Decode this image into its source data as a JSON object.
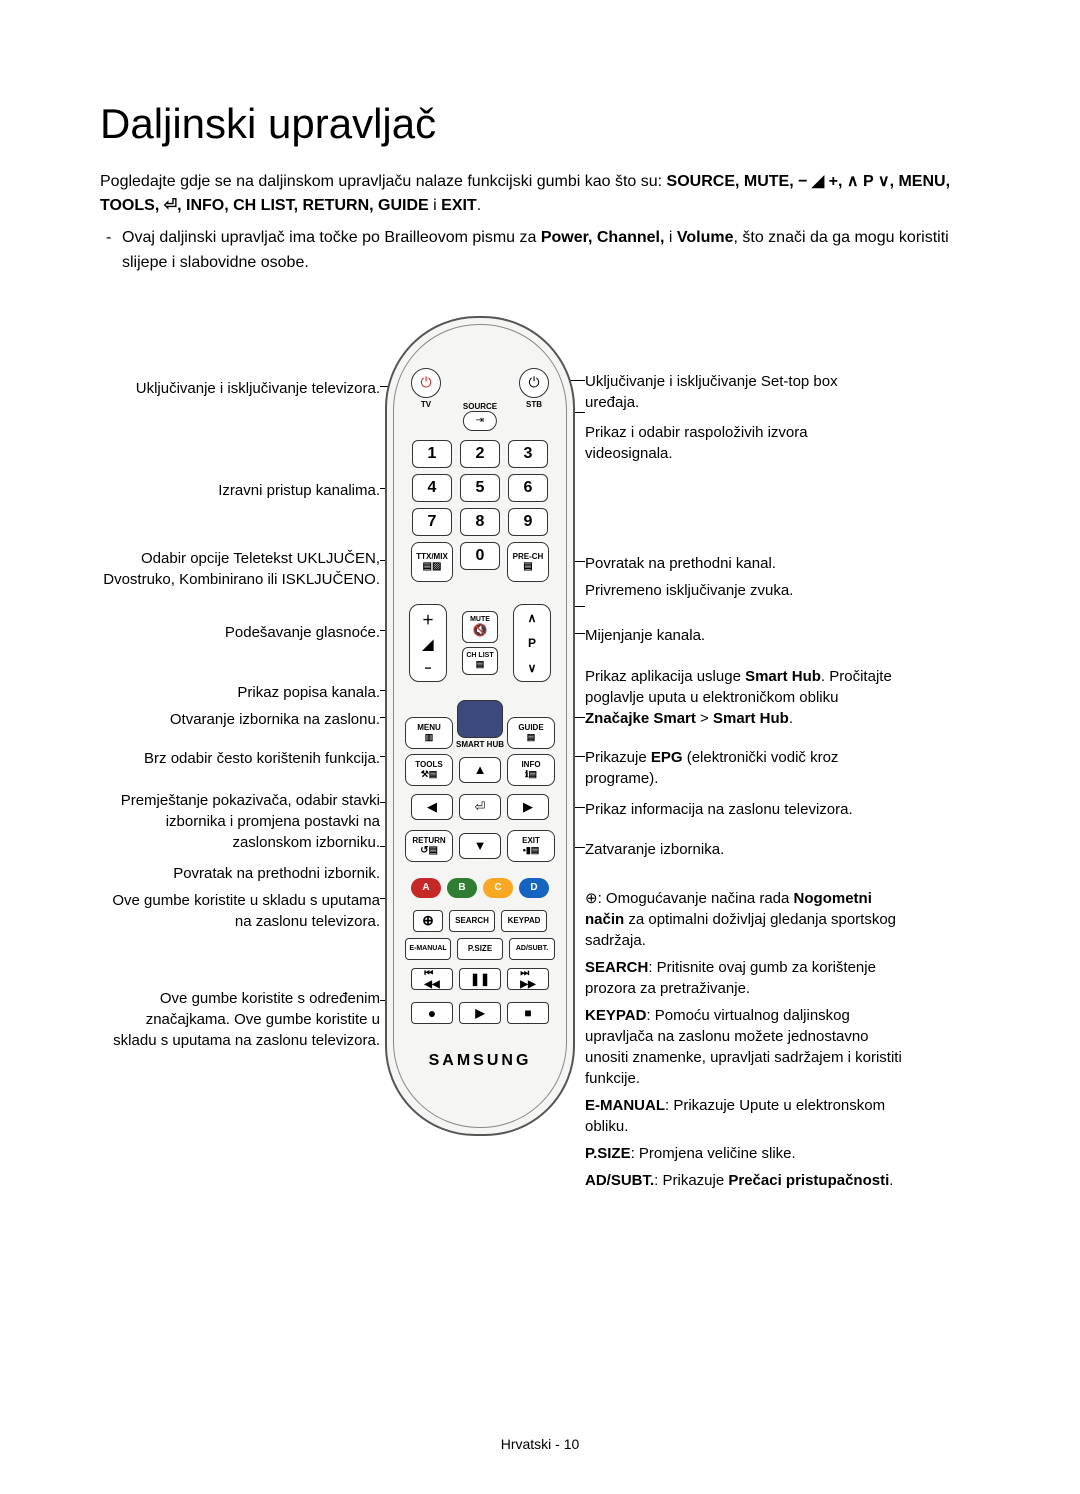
{
  "title": "Daljinski upravljač",
  "intro_pre": "Pogledajte gdje se na daljinskom upravljaču nalaze funkcijski gumbi kao što su: ",
  "intro_keys": "SOURCE, MUTE, − ◢ +, ∧ P ∨, MENU, TOOLS, ⏎, INFO, CH LIST, RETURN, GUIDE",
  "intro_post": " i ",
  "intro_last": "EXIT",
  "bullet_pre": "Ovaj daljinski upravljač ima točke po Brailleovom pismu za ",
  "bullet_keys": "Power, Channel,",
  "bullet_mid": " i ",
  "bullet_keys2": "Volume",
  "bullet_post": ", što znači da ga mogu koristiti slijepe i slabovidne osobe.",
  "footer": "Hrvatski - 10",
  "remote": {
    "tv": "TV",
    "source": "SOURCE",
    "stb": "STB",
    "ttx": "TTX/MIX",
    "prech": "PRE-CH",
    "mute": "MUTE",
    "chlist": "CH LIST",
    "p": "P",
    "menu": "MENU",
    "guide": "GUIDE",
    "smarthub": "SMART HUB",
    "tools": "TOOLS",
    "info": "INFO",
    "return": "RETURN",
    "exit": "EXIT",
    "search": "SEARCH",
    "keypad": "KEYPAD",
    "emanual": "E-MANUAL",
    "psize": "P.SIZE",
    "adsubt": "AD/SUBT.",
    "logo": "SAMSUNG",
    "abcd": [
      "A",
      "B",
      "C",
      "D"
    ],
    "abcd_colors": [
      "#c62828",
      "#2e7d32",
      "#f9a825",
      "#1565c0"
    ]
  },
  "left": {
    "power": "Uključivanje i isključivanje televizora.",
    "direct": "Izravni pristup kanalima.",
    "ttx": "Odabir opcije Teletekst UKLJUČEN, Dvostruko, Kombinirano ili ISKLJUČENO.",
    "vol": "Podešavanje glasnoće.",
    "chlist": "Prikaz popisa kanala.",
    "menu": "Otvaranje izbornika na zaslonu.",
    "tools": "Brz odabir često korištenih funkcija.",
    "cursor": "Premještanje pokazivača, odabir stavki izbornika i promjena postavki na zaslonskom izborniku.",
    "return": "Povratak na prethodni izbornik.",
    "abcd": "Ove gumbe koristite u skladu s uputama na zaslonu televizora.",
    "play": "Ove gumbe koristite s određenim značajkama. Ove gumbe koristite u skladu s uputama na zaslonu televizora."
  },
  "right": {
    "stb": "Uključivanje i isključivanje Set-top box uređaja.",
    "source": "Prikaz i odabir raspoloživih izvora videosignala.",
    "prech": "Povratak na prethodni kanal.",
    "mute": "Privremeno isključivanje zvuka.",
    "ch": "Mijenjanje kanala.",
    "hub_pre": "Prikaz aplikacija usluge ",
    "hub_b1": "Smart Hub",
    "hub_mid": ". Pročitajte poglavlje uputa u elektroničkom obliku ",
    "hub_b2": "Značajke Smart",
    "hub_gt": " > ",
    "hub_b3": "Smart Hub",
    "epg_pre": "Prikazuje ",
    "epg_b": "EPG",
    "epg_post": " (elektronički vodič kroz programe).",
    "info": "Prikaz informacija na zaslonu televizora.",
    "exit": "Zatvaranje izbornika.",
    "sport_pre": "⊕: Omogućavanje načina rada ",
    "sport_b": "Nogometni način",
    "sport_post": " za optimalni doživljaj gledanja sportskog sadržaja.",
    "search_b": "SEARCH",
    "search": ": Pritisnite ovaj gumb za korištenje prozora za pretraživanje.",
    "keypad_b": "KEYPAD",
    "keypad": ": Pomoću virtualnog daljinskog upravljača na zaslonu možete jednostavno unositi znamenke, upravljati sadržajem i koristiti funkcije.",
    "emanual_b": "E-MANUAL",
    "emanual": ": Prikazuje Upute u elektronskom obliku.",
    "psize_b": "P.SIZE",
    "psize": ": Promjena veličine slike.",
    "adsubt_b": "AD/SUBT.",
    "adsubt_pre": ": Prikazuje ",
    "adsubt_bb": "Prečaci pristupačnosti",
    "adsubt_post": "."
  }
}
